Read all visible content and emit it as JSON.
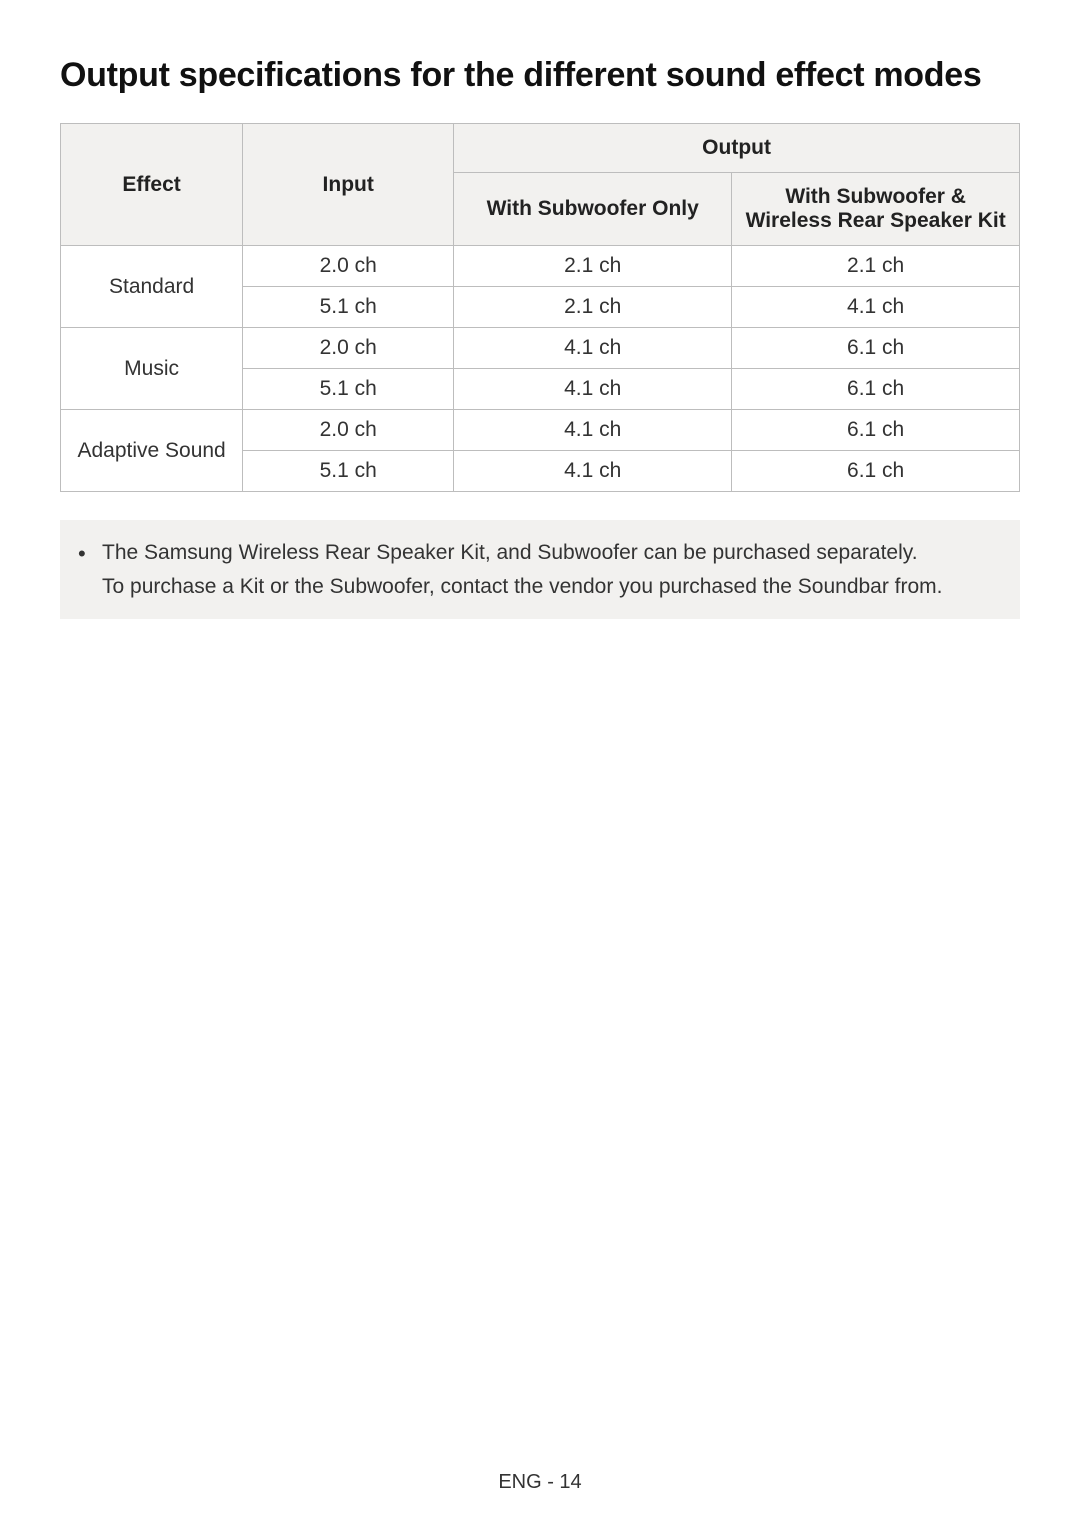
{
  "title": "Output specifications for the different sound effect modes",
  "table": {
    "columns": {
      "effect": "Effect",
      "input": "Input",
      "output": "Output",
      "output_sub_only": "With Subwoofer Only",
      "output_sub_rear": "With Subwoofer & Wireless Rear Speaker Kit"
    },
    "effects": [
      {
        "name": "Standard",
        "rows": [
          {
            "input": "2.0 ch",
            "sub_only": "2.1 ch",
            "sub_rear": "2.1 ch"
          },
          {
            "input": "5.1 ch",
            "sub_only": "2.1 ch",
            "sub_rear": "4.1 ch"
          }
        ]
      },
      {
        "name": "Music",
        "rows": [
          {
            "input": "2.0 ch",
            "sub_only": "4.1 ch",
            "sub_rear": "6.1 ch"
          },
          {
            "input": "5.1 ch",
            "sub_only": "4.1 ch",
            "sub_rear": "6.1 ch"
          }
        ]
      },
      {
        "name": "Adaptive Sound",
        "rows": [
          {
            "input": "2.0 ch",
            "sub_only": "4.1 ch",
            "sub_rear": "6.1 ch"
          },
          {
            "input": "5.1 ch",
            "sub_only": "4.1 ch",
            "sub_rear": "6.1 ch"
          }
        ]
      }
    ],
    "border_color": "#bdbdbd",
    "header_bg": "#f2f1ef",
    "cell_fontsize": 21
  },
  "note": {
    "line1": "The Samsung Wireless Rear Speaker Kit, and Subwoofer can be purchased separately.",
    "line2": "To purchase a Kit or the Subwoofer, contact the vendor you purchased the Soundbar from.",
    "bg": "#f2f1ef"
  },
  "footer": "ENG - 14",
  "page_bg": "#ffffff",
  "title_fontsize": 34
}
